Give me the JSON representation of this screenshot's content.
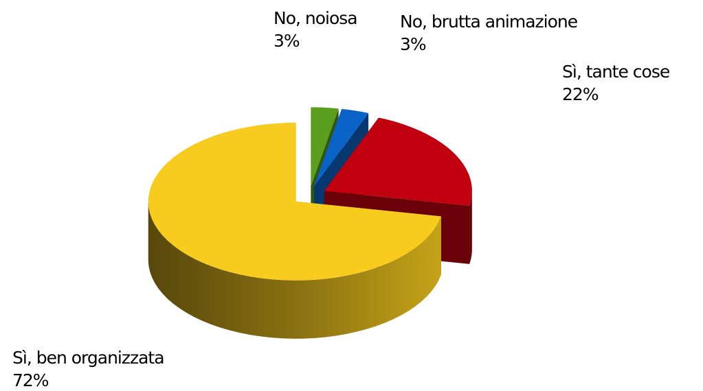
{
  "chart_data": {
    "type": "pie",
    "categories": [
      "No, noiosa",
      "No, brutta animazione",
      "Sì, tante cose",
      "Sì, ben organizzata"
    ],
    "values": [
      3,
      3,
      22,
      72
    ],
    "value_labels": [
      "3%",
      "3%",
      "22%",
      "72%"
    ],
    "colors": [
      "#5a9e1e",
      "#0a64c8",
      "#c0000f",
      "#f8cc1e"
    ]
  }
}
